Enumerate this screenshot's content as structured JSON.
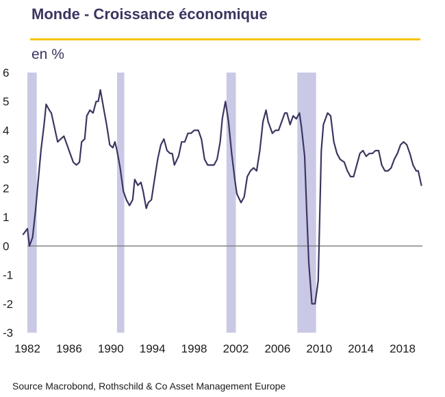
{
  "header": {
    "title": "Monde - Croissance économique",
    "unit": "en %"
  },
  "footer": {
    "source": "Source Macrobond, Rothschild & Co Asset Management  Europe"
  },
  "colors": {
    "line": "#3b3560",
    "recession_band": "#c9c9e6",
    "accent_rule": "#f5c400",
    "zero_line": "#808080"
  },
  "chart_data": {
    "type": "line",
    "title": "Monde - Croissance économique",
    "ylabel": "en %",
    "xlim": [
      1982.0,
      2019.9
    ],
    "ylim": [
      -3,
      6
    ],
    "x_ticks": [
      1982,
      1986,
      1990,
      1994,
      1998,
      2002,
      2006,
      2010,
      2014,
      2018
    ],
    "y_ticks": [
      6,
      5,
      4,
      3,
      2,
      1,
      0,
      -1,
      -2,
      -3
    ],
    "grid": false,
    "shaded_periods": [
      [
        1981.5,
        1982.9
      ],
      [
        1990.6,
        1991.3
      ],
      [
        2001.1,
        2002.0
      ],
      [
        2007.9,
        2009.7
      ]
    ],
    "series": [
      {
        "x": [
          1981.6,
          1982.0,
          1982.2,
          1982.5,
          1982.8,
          1983.0,
          1983.3,
          1983.6,
          1983.8,
          1984.1,
          1984.3,
          1984.6,
          1984.9,
          1985.2,
          1985.5,
          1985.8,
          1986.1,
          1986.4,
          1986.7,
          1987.0,
          1987.2,
          1987.5,
          1987.7,
          1988.0,
          1988.3,
          1988.6,
          1988.8,
          1989.0,
          1989.3,
          1989.6,
          1989.9,
          1990.2,
          1990.4,
          1990.6,
          1990.9,
          1991.2,
          1991.5,
          1991.8,
          1992.1,
          1992.3,
          1992.6,
          1992.9,
          1993.1,
          1993.4,
          1993.6,
          1993.9,
          1994.2,
          1994.5,
          1994.8,
          1995.1,
          1995.4,
          1995.7,
          1995.9,
          1996.1,
          1996.5,
          1996.8,
          1997.1,
          1997.4,
          1997.7,
          1998.0,
          1998.4,
          1998.7,
          1999.0,
          1999.3,
          1999.6,
          1999.9,
          2000.2,
          2000.5,
          2000.7,
          2001.0,
          2001.3,
          2001.6,
          2001.9,
          2002.1,
          2002.5,
          2002.8,
          2003.1,
          2003.4,
          2003.7,
          2004.0,
          2004.3,
          2004.6,
          2004.9,
          2005.1,
          2005.5,
          2005.8,
          2006.1,
          2006.4,
          2006.7,
          2006.9,
          2007.2,
          2007.5,
          2007.8,
          2008.1,
          2008.3,
          2008.6,
          2008.8,
          2009.0,
          2009.3,
          2009.6,
          2009.9,
          2010.2,
          2010.4,
          2010.8,
          2011.1,
          2011.4,
          2011.7,
          2012.0,
          2012.4,
          2012.7,
          2013.0,
          2013.3,
          2013.6,
          2013.9,
          2014.2,
          2014.5,
          2014.8,
          2015.1,
          2015.4,
          2015.7,
          2016.0,
          2016.3,
          2016.6,
          2016.9,
          2017.2,
          2017.5,
          2017.8,
          2018.1,
          2018.4,
          2018.7,
          2019.0,
          2019.3,
          2019.5,
          2019.8
        ],
        "values": [
          0.4,
          0.6,
          0.0,
          0.3,
          1.3,
          2.1,
          3.3,
          4.2,
          4.9,
          4.7,
          4.6,
          4.1,
          3.6,
          3.7,
          3.8,
          3.5,
          3.2,
          2.9,
          2.8,
          2.9,
          3.6,
          3.7,
          4.5,
          4.7,
          4.6,
          5.0,
          5.0,
          5.4,
          4.8,
          4.2,
          3.5,
          3.4,
          3.6,
          3.3,
          2.7,
          1.9,
          1.6,
          1.4,
          1.6,
          2.3,
          2.1,
          2.2,
          1.9,
          1.3,
          1.5,
          1.6,
          2.3,
          3.0,
          3.5,
          3.7,
          3.3,
          3.2,
          3.2,
          2.8,
          3.1,
          3.6,
          3.6,
          3.9,
          3.9,
          4.0,
          4.0,
          3.7,
          3.0,
          2.8,
          2.8,
          2.8,
          3.0,
          3.6,
          4.4,
          5.0,
          4.3,
          3.2,
          2.3,
          1.8,
          1.5,
          1.7,
          2.4,
          2.6,
          2.7,
          2.6,
          3.3,
          4.3,
          4.7,
          4.3,
          3.9,
          4.0,
          4.0,
          4.3,
          4.6,
          4.6,
          4.2,
          4.5,
          4.4,
          4.6,
          4.1,
          3.1,
          1.2,
          -0.6,
          -2.0,
          -2.0,
          -1.2,
          3.3,
          4.2,
          4.6,
          4.5,
          3.6,
          3.2,
          3.0,
          2.9,
          2.6,
          2.4,
          2.4,
          2.8,
          3.2,
          3.3,
          3.1,
          3.2,
          3.2,
          3.3,
          3.3,
          2.8,
          2.6,
          2.6,
          2.7,
          3.0,
          3.2,
          3.5,
          3.6,
          3.5,
          3.2,
          2.8,
          2.6,
          2.6,
          2.1
        ]
      }
    ]
  }
}
